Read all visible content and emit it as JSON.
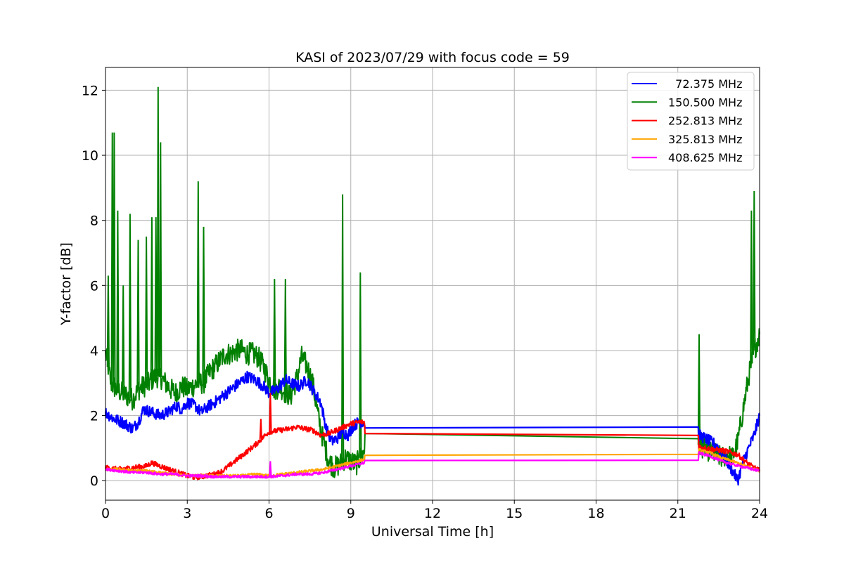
{
  "chart_data": {
    "type": "line",
    "title": "KASI of 2023/07/29 with focus code = 59",
    "xlabel": "Universal Time [h]",
    "ylabel": "Y-factor [dB]",
    "xlim": [
      0,
      24
    ],
    "ylim": [
      -0.6,
      12.7
    ],
    "xticks": [
      0,
      3,
      6,
      9,
      12,
      15,
      18,
      21,
      24
    ],
    "yticks": [
      0,
      2,
      4,
      6,
      8,
      10,
      12
    ],
    "grid": true,
    "legend_position": "top-right",
    "series": [
      {
        "name": "  72.375 MHz",
        "color": "#0000ff",
        "points": [
          [
            0,
            2.1
          ],
          [
            0.3,
            1.9
          ],
          [
            0.6,
            1.8
          ],
          [
            1.0,
            1.6
          ],
          [
            1.2,
            1.8
          ],
          [
            1.4,
            2.2
          ],
          [
            1.7,
            2.1
          ],
          [
            2.0,
            2.0
          ],
          [
            2.3,
            2.1
          ],
          [
            2.6,
            2.3
          ],
          [
            2.8,
            2.2
          ],
          [
            3.0,
            2.4
          ],
          [
            3.3,
            2.3
          ],
          [
            3.5,
            2.1
          ],
          [
            3.8,
            2.3
          ],
          [
            4.0,
            2.4
          ],
          [
            4.3,
            2.6
          ],
          [
            4.6,
            2.8
          ],
          [
            4.9,
            3.0
          ],
          [
            5.2,
            3.2
          ],
          [
            5.5,
            3.1
          ],
          [
            5.8,
            2.9
          ],
          [
            6.0,
            2.7
          ],
          [
            6.3,
            2.8
          ],
          [
            6.6,
            3.1
          ],
          [
            6.8,
            3.0
          ],
          [
            7.1,
            2.9
          ],
          [
            7.4,
            3.1
          ],
          [
            7.6,
            2.8
          ],
          [
            7.9,
            2.4
          ],
          [
            8.1,
            1.6
          ],
          [
            8.3,
            1.2
          ],
          [
            8.5,
            1.3
          ],
          [
            8.7,
            1.5
          ],
          [
            8.9,
            1.4
          ],
          [
            9.1,
            1.7
          ],
          [
            9.3,
            1.8
          ],
          [
            9.5,
            1.8
          ],
          [
            9.52,
            1.62
          ],
          [
            21.75,
            1.6
          ],
          [
            21.77,
            1.4
          ],
          [
            22.0,
            1.3
          ],
          [
            22.4,
            1.1
          ],
          [
            22.8,
            0.6
          ],
          [
            23.0,
            0.3
          ],
          [
            23.2,
            0.0
          ],
          [
            23.4,
            0.6
          ],
          [
            23.6,
            1.0
          ],
          [
            23.8,
            1.4
          ],
          [
            24.0,
            2.0
          ]
        ],
        "spikes": []
      },
      {
        "name": "150.500 MHz",
        "color": "#008000",
        "points": [
          [
            0,
            3.9
          ],
          [
            0.1,
            3.5
          ],
          [
            0.2,
            3.0
          ],
          [
            0.4,
            2.8
          ],
          [
            0.6,
            2.7
          ],
          [
            0.8,
            2.6
          ],
          [
            1.0,
            2.5
          ],
          [
            1.2,
            2.8
          ],
          [
            1.4,
            2.9
          ],
          [
            1.6,
            3.0
          ],
          [
            1.8,
            3.2
          ],
          [
            2.0,
            3.2
          ],
          [
            2.2,
            3.0
          ],
          [
            2.4,
            2.8
          ],
          [
            2.6,
            2.7
          ],
          [
            2.8,
            2.9
          ],
          [
            3.0,
            2.8
          ],
          [
            3.2,
            2.9
          ],
          [
            3.4,
            3.0
          ],
          [
            3.6,
            3.0
          ],
          [
            3.8,
            3.3
          ],
          [
            4.0,
            3.5
          ],
          [
            4.2,
            3.7
          ],
          [
            4.4,
            3.9
          ],
          [
            4.6,
            3.9
          ],
          [
            4.8,
            4.0
          ],
          [
            5.0,
            4.0
          ],
          [
            5.2,
            3.9
          ],
          [
            5.4,
            3.9
          ],
          [
            5.6,
            3.8
          ],
          [
            5.8,
            3.5
          ],
          [
            6.0,
            3.1
          ],
          [
            6.2,
            2.8
          ],
          [
            6.4,
            2.9
          ],
          [
            6.6,
            2.7
          ],
          [
            6.8,
            2.6
          ],
          [
            7.0,
            3.1
          ],
          [
            7.2,
            3.8
          ],
          [
            7.4,
            3.5
          ],
          [
            7.6,
            3.0
          ],
          [
            7.8,
            2.0
          ],
          [
            8.0,
            1.2
          ],
          [
            8.2,
            0.6
          ],
          [
            8.4,
            0.4
          ],
          [
            8.6,
            0.5
          ],
          [
            8.8,
            0.7
          ],
          [
            9.0,
            0.6
          ],
          [
            9.2,
            0.5
          ],
          [
            9.5,
            0.9
          ],
          [
            9.52,
            1.45
          ],
          [
            21.75,
            1.45
          ],
          [
            21.77,
            1.1
          ],
          [
            22.0,
            1.0
          ],
          [
            22.2,
            0.9
          ],
          [
            22.4,
            0.8
          ],
          [
            22.6,
            0.7
          ],
          [
            22.8,
            0.8
          ],
          [
            23.0,
            0.7
          ],
          [
            23.2,
            1.2
          ],
          [
            23.4,
            2.2
          ],
          [
            23.6,
            3.2
          ],
          [
            23.8,
            4.0
          ],
          [
            24.0,
            4.5
          ]
        ],
        "spikes": [
          [
            0.1,
            6.3
          ],
          [
            0.25,
            10.7
          ],
          [
            0.32,
            10.7
          ],
          [
            0.45,
            8.3
          ],
          [
            0.65,
            6.0
          ],
          [
            0.9,
            8.2
          ],
          [
            1.2,
            7.4
          ],
          [
            1.5,
            7.5
          ],
          [
            1.7,
            8.1
          ],
          [
            1.85,
            8.1
          ],
          [
            1.93,
            12.1
          ],
          [
            2.02,
            10.4
          ],
          [
            3.4,
            9.2
          ],
          [
            3.6,
            7.8
          ],
          [
            6.2,
            6.2
          ],
          [
            6.6,
            6.2
          ],
          [
            8.7,
            8.8
          ],
          [
            9.35,
            6.4
          ],
          [
            21.78,
            4.5
          ],
          [
            23.7,
            8.3
          ],
          [
            23.8,
            8.9
          ]
        ]
      },
      {
        "name": "252.813 MHz",
        "color": "#ff0000",
        "points": [
          [
            0,
            0.4
          ],
          [
            0.5,
            0.35
          ],
          [
            1.0,
            0.4
          ],
          [
            1.5,
            0.45
          ],
          [
            1.7,
            0.55
          ],
          [
            2.0,
            0.45
          ],
          [
            2.5,
            0.3
          ],
          [
            3.0,
            0.15
          ],
          [
            3.3,
            0.1
          ],
          [
            3.7,
            0.15
          ],
          [
            4.0,
            0.2
          ],
          [
            4.3,
            0.3
          ],
          [
            4.6,
            0.5
          ],
          [
            4.9,
            0.7
          ],
          [
            5.2,
            0.9
          ],
          [
            5.5,
            1.1
          ],
          [
            5.8,
            1.35
          ],
          [
            6.0,
            1.5
          ],
          [
            6.4,
            1.55
          ],
          [
            6.8,
            1.6
          ],
          [
            7.0,
            1.65
          ],
          [
            7.3,
            1.6
          ],
          [
            7.6,
            1.55
          ],
          [
            7.9,
            1.4
          ],
          [
            8.2,
            1.45
          ],
          [
            8.6,
            1.6
          ],
          [
            9.0,
            1.75
          ],
          [
            9.3,
            1.8
          ],
          [
            9.5,
            1.8
          ],
          [
            9.52,
            1.45
          ],
          [
            21.75,
            1.45
          ],
          [
            21.77,
            1.05
          ],
          [
            22.0,
            1.0
          ],
          [
            22.4,
            0.95
          ],
          [
            22.8,
            0.9
          ],
          [
            23.2,
            0.8
          ],
          [
            23.6,
            0.5
          ],
          [
            24.0,
            0.3
          ]
        ],
        "spikes": [
          [
            6.05,
            2.7
          ],
          [
            5.7,
            1.9
          ]
        ]
      },
      {
        "name": "325.813 MHz",
        "color": "#ffa500",
        "points": [
          [
            0,
            0.35
          ],
          [
            0.5,
            0.35
          ],
          [
            1.0,
            0.3
          ],
          [
            1.5,
            0.3
          ],
          [
            2.0,
            0.25
          ],
          [
            2.5,
            0.2
          ],
          [
            3.0,
            0.15
          ],
          [
            3.5,
            0.15
          ],
          [
            4.0,
            0.15
          ],
          [
            4.5,
            0.15
          ],
          [
            5.0,
            0.15
          ],
          [
            5.5,
            0.2
          ],
          [
            6.0,
            0.15
          ],
          [
            6.5,
            0.2
          ],
          [
            7.0,
            0.25
          ],
          [
            7.5,
            0.3
          ],
          [
            8.0,
            0.35
          ],
          [
            8.5,
            0.45
          ],
          [
            9.0,
            0.55
          ],
          [
            9.5,
            0.65
          ],
          [
            9.52,
            0.78
          ],
          [
            21.75,
            0.78
          ],
          [
            21.77,
            0.95
          ],
          [
            22.2,
            0.85
          ],
          [
            22.6,
            0.7
          ],
          [
            23.0,
            0.6
          ],
          [
            23.5,
            0.45
          ],
          [
            24.0,
            0.3
          ]
        ],
        "spikes": []
      },
      {
        "name": "408.625 MHz",
        "color": "#ff00ff",
        "points": [
          [
            0,
            0.35
          ],
          [
            0.5,
            0.3
          ],
          [
            1.0,
            0.25
          ],
          [
            1.5,
            0.25
          ],
          [
            2.0,
            0.2
          ],
          [
            2.5,
            0.2
          ],
          [
            3.0,
            0.15
          ],
          [
            3.5,
            0.15
          ],
          [
            4.0,
            0.12
          ],
          [
            4.5,
            0.12
          ],
          [
            5.0,
            0.12
          ],
          [
            5.5,
            0.12
          ],
          [
            6.0,
            0.12
          ],
          [
            6.5,
            0.15
          ],
          [
            7.0,
            0.2
          ],
          [
            7.5,
            0.2
          ],
          [
            8.0,
            0.25
          ],
          [
            8.5,
            0.35
          ],
          [
            9.0,
            0.45
          ],
          [
            9.5,
            0.55
          ],
          [
            9.52,
            0.62
          ],
          [
            21.75,
            0.62
          ],
          [
            21.77,
            0.85
          ],
          [
            22.2,
            0.75
          ],
          [
            22.6,
            0.6
          ],
          [
            23.0,
            0.5
          ],
          [
            23.5,
            0.4
          ],
          [
            24.0,
            0.3
          ]
        ],
        "spikes": [
          [
            6.05,
            0.6
          ]
        ]
      }
    ]
  }
}
